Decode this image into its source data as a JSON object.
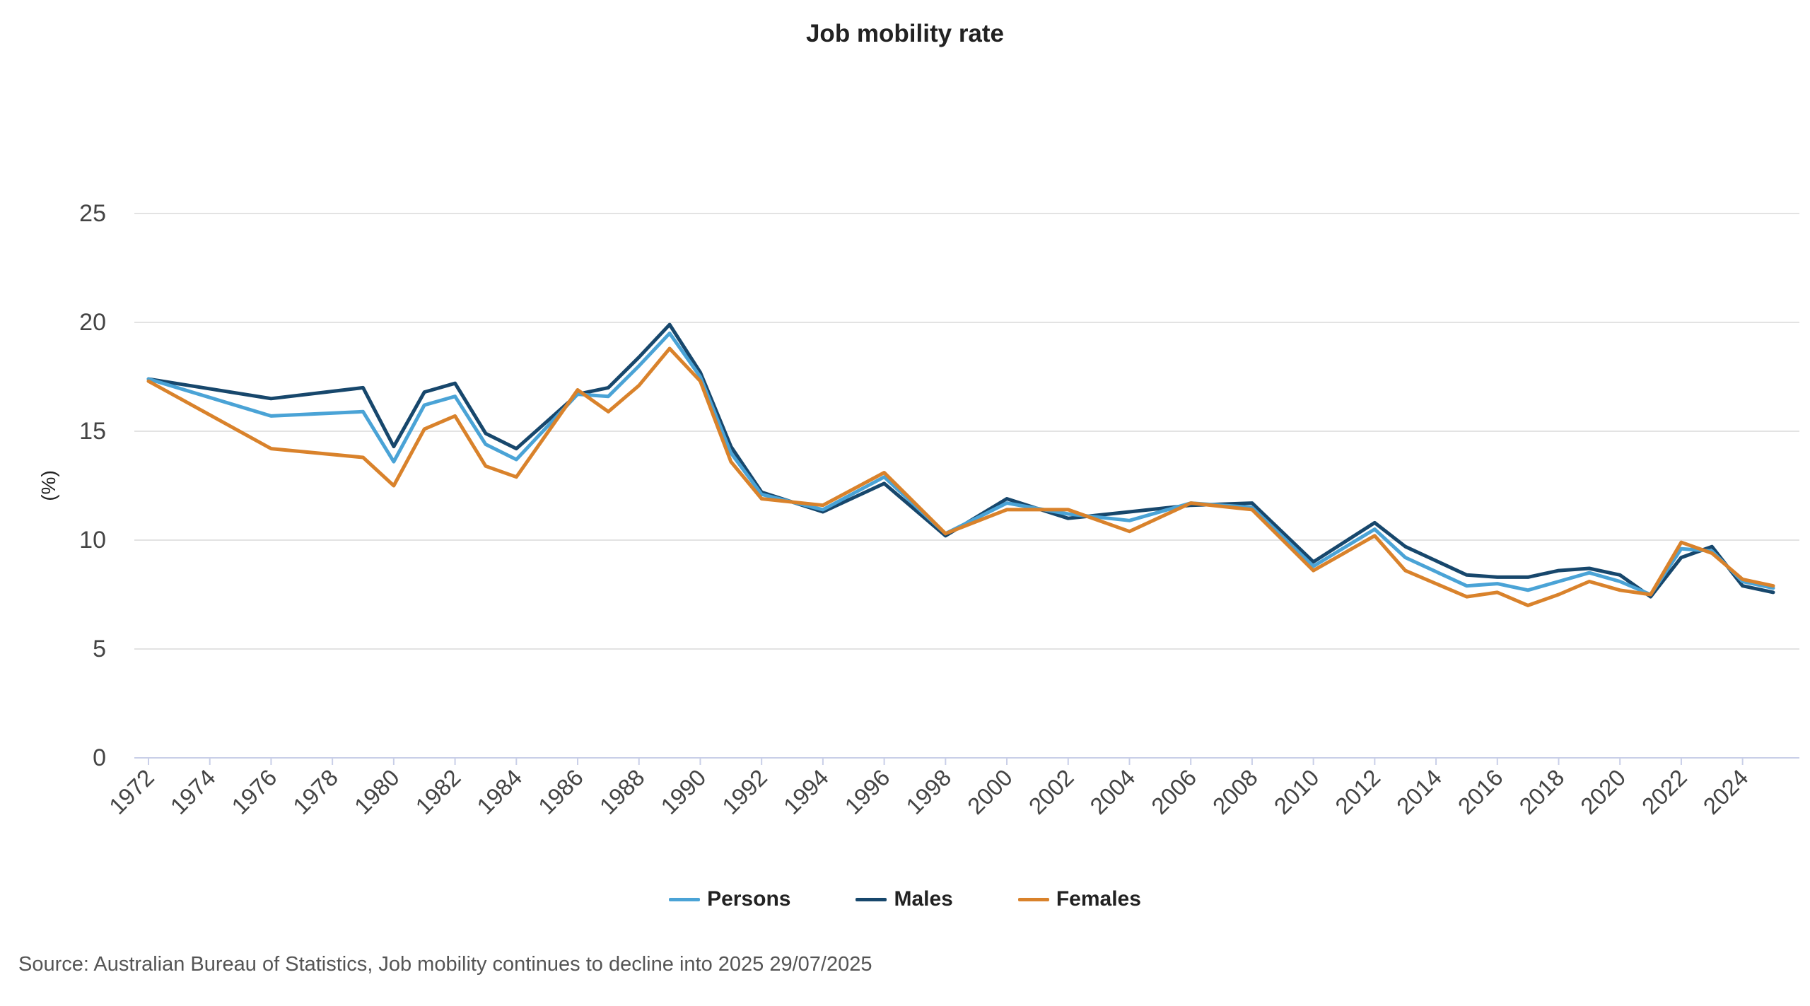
{
  "chart_data": {
    "type": "line",
    "title": "Job mobility rate",
    "ylabel": "(%)",
    "xlabel": "",
    "ylim": [
      0,
      25
    ],
    "yticks": [
      0,
      5,
      10,
      15,
      20,
      25
    ],
    "xlim": [
      1972,
      2025
    ],
    "xticks": [
      1972,
      1974,
      1976,
      1978,
      1980,
      1982,
      1984,
      1986,
      1988,
      1990,
      1992,
      1994,
      1996,
      1998,
      2000,
      2002,
      2004,
      2006,
      2008,
      2010,
      2012,
      2014,
      2016,
      2018,
      2020,
      2022,
      2024
    ],
    "x": [
      1972,
      1976,
      1979,
      1980,
      1981,
      1982,
      1983,
      1984,
      1986,
      1987,
      1988,
      1989,
      1990,
      1991,
      1992,
      1994,
      1996,
      1998,
      2000,
      2002,
      2004,
      2006,
      2008,
      2010,
      2012,
      2013,
      2015,
      2016,
      2017,
      2018,
      2019,
      2020,
      2021,
      2022,
      2023,
      2024,
      2025
    ],
    "series": [
      {
        "name": "Persons",
        "color": "#4aa3d6",
        "values": [
          17.4,
          15.7,
          15.9,
          13.6,
          16.2,
          16.6,
          14.4,
          13.7,
          16.7,
          16.6,
          18.0,
          19.5,
          17.5,
          14.0,
          12.1,
          11.4,
          12.9,
          10.3,
          11.7,
          11.2,
          10.9,
          11.7,
          11.5,
          8.8,
          10.5,
          9.2,
          7.9,
          8.0,
          7.7,
          8.1,
          8.5,
          8.1,
          7.5,
          9.6,
          9.5,
          8.1,
          7.8
        ]
      },
      {
        "name": "Males",
        "color": "#17476c",
        "values": [
          17.4,
          16.5,
          17.0,
          14.3,
          16.8,
          17.2,
          14.9,
          14.2,
          16.7,
          17.0,
          18.4,
          19.9,
          17.7,
          14.3,
          12.2,
          11.3,
          12.6,
          10.2,
          11.9,
          11.0,
          11.3,
          11.6,
          11.7,
          9.0,
          10.8,
          9.7,
          8.4,
          8.3,
          8.3,
          8.6,
          8.7,
          8.4,
          7.4,
          9.2,
          9.7,
          7.9,
          7.6
        ]
      },
      {
        "name": "Females",
        "color": "#d9822b",
        "values": [
          17.3,
          14.2,
          13.8,
          12.5,
          15.1,
          15.7,
          13.4,
          12.9,
          16.9,
          15.9,
          17.1,
          18.8,
          17.3,
          13.6,
          11.9,
          11.6,
          13.1,
          10.3,
          11.4,
          11.4,
          10.4,
          11.7,
          11.4,
          8.6,
          10.2,
          8.6,
          7.4,
          7.6,
          7.0,
          7.5,
          8.1,
          7.7,
          7.5,
          9.9,
          9.4,
          8.2,
          7.9
        ]
      }
    ]
  },
  "legend": {
    "items": [
      {
        "label": "Persons"
      },
      {
        "label": "Males"
      },
      {
        "label": "Females"
      }
    ]
  },
  "footer": {
    "source": "Source: Australian Bureau of Statistics, Job mobility continues to decline into 2025 29/07/2025"
  }
}
